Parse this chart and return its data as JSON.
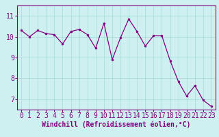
{
  "x": [
    0,
    1,
    2,
    3,
    4,
    5,
    6,
    7,
    8,
    9,
    10,
    11,
    12,
    13,
    14,
    15,
    16,
    17,
    18,
    19,
    20,
    21,
    22,
    23
  ],
  "y": [
    10.3,
    10.0,
    10.3,
    10.15,
    10.1,
    9.65,
    10.25,
    10.35,
    10.1,
    9.45,
    10.65,
    8.9,
    9.95,
    10.85,
    10.25,
    9.55,
    10.05,
    10.05,
    8.85,
    7.85,
    7.15,
    7.65,
    6.95,
    6.65
  ],
  "line_color": "#800080",
  "marker_color": "#800080",
  "bg_color": "#cff0f0",
  "grid_color": "#aadddd",
  "xlabel": "Windchill (Refroidissement éolien,°C)",
  "ylim": [
    6.5,
    11.5
  ],
  "xlim": [
    -0.5,
    23.5
  ],
  "yticks": [
    7,
    8,
    9,
    10,
    11
  ],
  "xticks": [
    0,
    1,
    2,
    3,
    4,
    5,
    6,
    7,
    8,
    9,
    10,
    11,
    12,
    13,
    14,
    15,
    16,
    17,
    18,
    19,
    20,
    21,
    22,
    23
  ],
  "tick_color": "#800080",
  "label_color": "#800080",
  "spine_color": "#800080",
  "font_size_xlabel": 7,
  "font_size_ticks": 7
}
